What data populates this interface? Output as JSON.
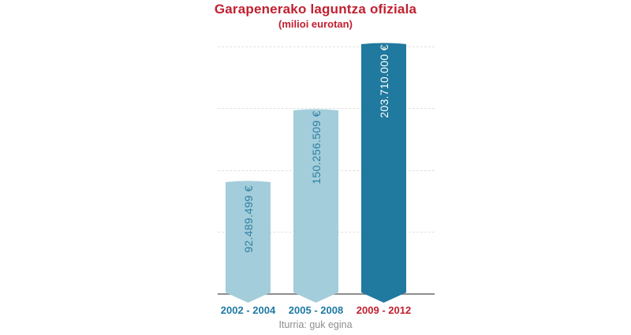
{
  "title": "Garapenerako laguntza ofiziala",
  "subtitle": "(milioi eurotan)",
  "source": "Iturria: guk egina",
  "colors": {
    "accent_red": "#c1202f",
    "label_blue": "#1e7aa3",
    "bar_light": "#a3cdda",
    "bar_dark": "#20799e",
    "value_text_light_bar": "#2e7fa3",
    "value_text_dark_bar": "#ffffff",
    "gridline": "#e0e0e0",
    "baseline": "#8f8f8f",
    "source_gray": "#8d8d8d"
  },
  "chart_data": {
    "type": "bar",
    "title": "Garapenerako laguntza ofiziala",
    "subtitle": "(milioi eurotan)",
    "xlabel": "",
    "ylabel": "",
    "categories": [
      "2002 - 2004",
      "2005 - 2008",
      "2009 - 2012"
    ],
    "values": [
      92489499,
      150256509,
      203710000
    ],
    "value_labels": [
      "92.489.499 €",
      "150.256.509 €",
      "203.710.000 €"
    ],
    "bar_colors": [
      "#a3cdda",
      "#a3cdda",
      "#20799e"
    ],
    "value_text_colors": [
      "#2e7fa3",
      "#2e7fa3",
      "#ffffff"
    ],
    "category_colors": [
      "#1e7aa3",
      "#1e7aa3",
      "#c1202f"
    ],
    "ylim": [
      0,
      203710000
    ],
    "gridlines": [
      50000000,
      100000000,
      150000000,
      200000000
    ],
    "grid": "horizontal",
    "legend": "none",
    "orientation": "vertical",
    "bar_shape": "arched-top, chevron-point bottom"
  }
}
